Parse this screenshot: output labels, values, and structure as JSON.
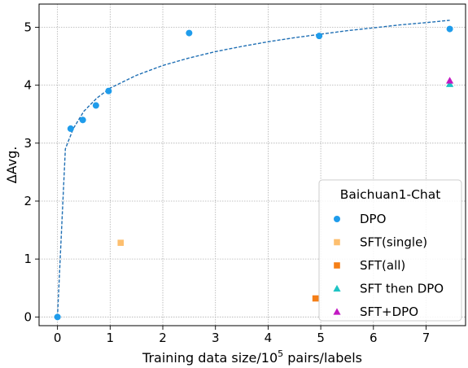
{
  "chart_data": {
    "type": "scatter",
    "xlabel_main": "Training data size/10",
    "xlabel_sup": "5",
    "xlabel_tail": " pairs/labels",
    "ylabel": "ΔAvg.",
    "xlim": [
      -0.35,
      7.75
    ],
    "ylim": [
      -0.15,
      5.4
    ],
    "x_ticks": [
      0,
      1,
      2,
      3,
      4,
      5,
      6,
      7
    ],
    "y_ticks": [
      0,
      1,
      2,
      3,
      4,
      5
    ],
    "grid": true,
    "legend": {
      "title": "Baichuan1-Chat",
      "placement": "lower-right"
    },
    "series": [
      {
        "name": "DPO",
        "marker": "circle",
        "color": "#1f9ceb",
        "points": [
          {
            "x": 0,
            "y": 0
          },
          {
            "x": 0.25,
            "y": 3.25
          },
          {
            "x": 0.48,
            "y": 3.4
          },
          {
            "x": 0.73,
            "y": 3.65
          },
          {
            "x": 0.97,
            "y": 3.9
          },
          {
            "x": 2.5,
            "y": 4.9
          },
          {
            "x": 4.97,
            "y": 4.85
          },
          {
            "x": 7.45,
            "y": 4.97
          }
        ]
      },
      {
        "name": "SFT(single)",
        "marker": "square",
        "color": "#fdbf6f",
        "points": [
          {
            "x": 1.2,
            "y": 1.28
          }
        ]
      },
      {
        "name": "SFT(all)",
        "marker": "square",
        "color": "#f57f17",
        "points": [
          {
            "x": 4.9,
            "y": 0.32
          }
        ]
      },
      {
        "name": "SFT then DPO",
        "marker": "triangle",
        "color": "#1ec4c4",
        "points": [
          {
            "x": 7.45,
            "y": 4.02
          }
        ]
      },
      {
        "name": "SFT+DPO",
        "marker": "triangle",
        "color": "#c219c2",
        "points": [
          {
            "x": 7.45,
            "y": 4.08
          }
        ]
      }
    ],
    "fit_line": {
      "style": "dashed",
      "color": "#1f6fb4",
      "x_range": [
        0,
        7.45
      ],
      "points": [
        {
          "x": 0,
          "y": 0
        },
        {
          "x": 0.15,
          "y": 2.9
        },
        {
          "x": 0.3,
          "y": 3.25
        },
        {
          "x": 0.5,
          "y": 3.55
        },
        {
          "x": 0.75,
          "y": 3.78
        },
        {
          "x": 1.0,
          "y": 3.95
        },
        {
          "x": 1.5,
          "y": 4.17
        },
        {
          "x": 2.0,
          "y": 4.34
        },
        {
          "x": 2.5,
          "y": 4.47
        },
        {
          "x": 3.0,
          "y": 4.58
        },
        {
          "x": 3.5,
          "y": 4.67
        },
        {
          "x": 4.0,
          "y": 4.75
        },
        {
          "x": 4.5,
          "y": 4.82
        },
        {
          "x": 5.0,
          "y": 4.88
        },
        {
          "x": 5.5,
          "y": 4.94
        },
        {
          "x": 6.0,
          "y": 4.99
        },
        {
          "x": 6.5,
          "y": 5.04
        },
        {
          "x": 7.0,
          "y": 5.08
        },
        {
          "x": 7.45,
          "y": 5.12
        }
      ]
    }
  }
}
